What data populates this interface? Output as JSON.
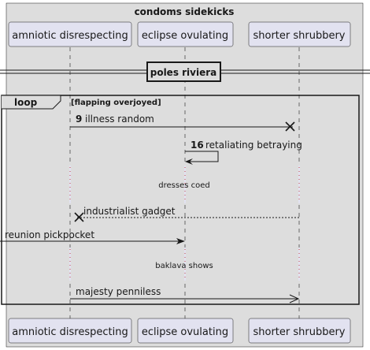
{
  "box": {
    "title": "condoms sidekicks"
  },
  "participants": [
    {
      "name": "amniotic disrespecting"
    },
    {
      "name": "eclipse ovulating"
    },
    {
      "name": "shorter shrubbery"
    }
  ],
  "divider": {
    "label": "poles riviera"
  },
  "loop": {
    "keyword": "loop",
    "guard": "[flapping overjoyed]"
  },
  "messages": [
    {
      "number": "9",
      "text": "illness random",
      "from": "amniotic disrespecting",
      "to": "shorter shrubbery",
      "style": "solid",
      "end": "destroy"
    },
    {
      "number": "16",
      "text": "retaliating betraying",
      "from": "eclipse ovulating",
      "to": "eclipse ovulating",
      "style": "solid",
      "end": "arrow"
    },
    {
      "number": "",
      "text": "industrialist gadget",
      "from": "shorter shrubbery",
      "to": "amniotic disrespecting",
      "style": "dashed",
      "end": "destroy"
    },
    {
      "number": "",
      "text": "reunion pickpocket",
      "from": "found",
      "to": "eclipse ovulating",
      "style": "solid",
      "end": "arrow"
    },
    {
      "number": "",
      "text": "majesty penniless",
      "from": "amniotic disrespecting",
      "to": "shorter shrubbery",
      "style": "solid",
      "end": "open-arrow"
    }
  ],
  "delays": [
    {
      "text": "dresses coed"
    },
    {
      "text": "baklava shows"
    }
  ],
  "colors": {
    "box_fill": "#DDDDDD",
    "participant_fill": "#E2E2F0",
    "line": "#181818"
  }
}
